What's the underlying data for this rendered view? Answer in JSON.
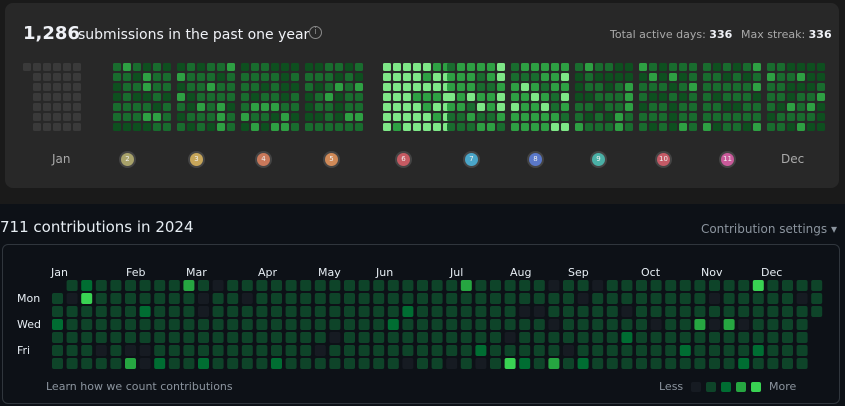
{
  "leetcode": {
    "count": "1,286",
    "title": "submissions in the past one year",
    "info_icon": "info-icon",
    "total_active_label": "Total active days:",
    "total_active_value": "336",
    "max_streak_label": "Max streak:",
    "max_streak_value": "336",
    "months_visible": [
      "Jan",
      "Dec"
    ],
    "badges": [
      "2",
      "3",
      "4",
      "5",
      "6",
      "7",
      "8",
      "9",
      "10",
      "11"
    ],
    "badge_colors": [
      "#a8a26a",
      "#c7a65a",
      "#c9785a",
      "#d08a58",
      "#c55a62",
      "#4aa6c9",
      "#5a78c9",
      "#4ab0a6",
      "#c45a66",
      "#c95a9a"
    ],
    "colors": {
      "empty": "#3a3a3a",
      "l1": "#0e4f1f",
      "l2": "#196c2e",
      "l3": "#2ea043",
      "l4": "#7ee787"
    }
  },
  "github": {
    "title": "711 contributions in 2024",
    "settings_label": "Contribution settings",
    "months": [
      "Jan",
      "Feb",
      "Mar",
      "Apr",
      "May",
      "Jun",
      "Jul",
      "Aug",
      "Sep",
      "Oct",
      "Nov",
      "Dec"
    ],
    "day_labels": [
      "Mon",
      "Wed",
      "Fri"
    ],
    "learn_link": "Learn how we count contributions",
    "legend_less": "Less",
    "legend_more": "More",
    "colors": {
      "empty": "#161b22",
      "l1": "#0e4429",
      "l2": "#006d32",
      "l3": "#26a641",
      "l4": "#39d353"
    }
  }
}
